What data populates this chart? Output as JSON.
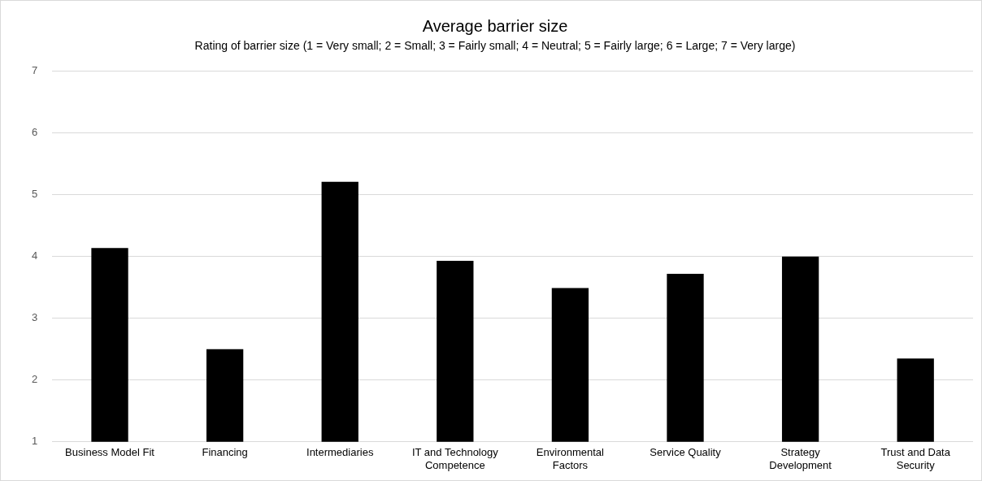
{
  "chart_data": {
    "type": "bar",
    "title": "Average barrier size",
    "subtitle": "Rating of barrier size (1 = Very small; 2 = Small; 3 = Fairly small; 4 = Neutral; 5 = Fairly large; 6 = Large; 7 = Very large)",
    "categories": [
      "Business Model Fit",
      "Financing",
      "Intermediaries",
      "IT and Technology Competence",
      "Environmental Factors",
      "Service Quality",
      "Strategy Development",
      "Trust and Data Security"
    ],
    "values": [
      4.14,
      2.5,
      5.21,
      3.93,
      3.49,
      3.72,
      4.0,
      2.35
    ],
    "color": "#000000",
    "ylim": [
      1,
      7
    ],
    "yticks": [
      1,
      2,
      3,
      4,
      5,
      6,
      7
    ],
    "grid": "y",
    "legend": false
  }
}
